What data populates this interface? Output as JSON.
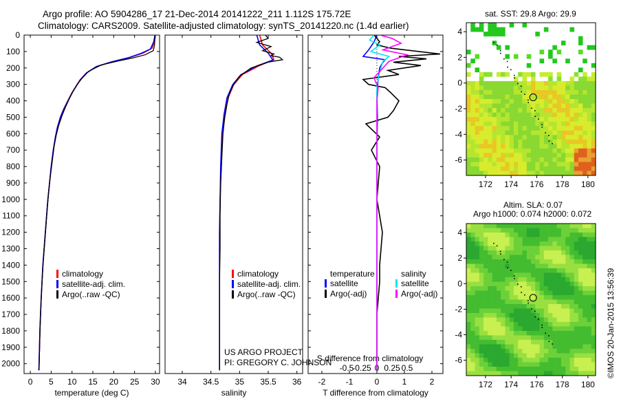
{
  "title_line1": "Argo profile: AO 5904286_17 21-Dec-2014 20141222_211 1.112S 175.72E",
  "title_line2": "Climatology: CARS2009. Satellite-adjusted climatology: synTS_20141220.nc (1.4d earlier)",
  "sst_title": "sat. SST: 29.8 Argo: 29.9",
  "sla_title1": "Altim. SLA: 0.07",
  "sla_title2": "Argo h1000: 0.074 h2000: 0.072",
  "side_stamp": "©IMOS 20-Jan-2015 13:56:39",
  "project_line1": "US ARGO PROJECT",
  "project_line2": "PI: GREGORY C. JOHNSON",
  "colors": {
    "climatology": "#ff0000",
    "satellite": "#0000ff",
    "argo": "#000000",
    "sat_diff": "#00e5ee",
    "argo_diff": "#ff00ff"
  },
  "chart_data": [
    {
      "type": "line",
      "xlabel": "temperature (deg C)",
      "ylabel": "",
      "xlim": [
        -1.5,
        31
      ],
      "ylim": [
        2060,
        0
      ],
      "xticks": [
        0,
        5,
        10,
        15,
        20,
        25,
        30
      ],
      "yticks": [
        0,
        100,
        200,
        300,
        400,
        500,
        600,
        700,
        800,
        900,
        1000,
        1100,
        1200,
        1300,
        1400,
        1500,
        1600,
        1700,
        1800,
        1900,
        2000
      ],
      "legend": [
        "climatology",
        "satellite-adj. clim.",
        "Argo(..raw -QC)"
      ],
      "series": [
        {
          "name": "climatology",
          "color": "#ff0000",
          "points": [
            [
              30,
              0
            ],
            [
              29.8,
              40
            ],
            [
              29.2,
              80
            ],
            [
              27,
              110
            ],
            [
              24,
              135
            ],
            [
              20,
              160
            ],
            [
              16,
              190
            ],
            [
              13.5,
              230
            ],
            [
              12,
              270
            ],
            [
              11,
              310
            ],
            [
              10,
              350
            ],
            [
              9,
              400
            ],
            [
              8,
              450
            ],
            [
              7.2,
              500
            ],
            [
              6.5,
              560
            ],
            [
              6,
              620
            ],
            [
              5.5,
              700
            ],
            [
              5,
              800
            ],
            [
              4.6,
              900
            ],
            [
              4.2,
              1000
            ],
            [
              3.9,
              1100
            ],
            [
              3.6,
              1200
            ],
            [
              3.3,
              1300
            ],
            [
              3,
              1400
            ],
            [
              2.8,
              1500
            ],
            [
              2.6,
              1600
            ],
            [
              2.45,
              1700
            ],
            [
              2.3,
              1800
            ],
            [
              2.2,
              1900
            ],
            [
              2.1,
              2000
            ],
            [
              2.05,
              2040
            ]
          ]
        },
        {
          "name": "satellite-adj. clim.",
          "color": "#0000ff",
          "points": [
            [
              29.9,
              0
            ],
            [
              29.6,
              40
            ],
            [
              28.8,
              85
            ],
            [
              26.5,
              112
            ],
            [
              23.5,
              138
            ],
            [
              19.5,
              163
            ],
            [
              15.8,
              192
            ],
            [
              13.4,
              232
            ],
            [
              12,
              272
            ],
            [
              11,
              312
            ],
            [
              10,
              352
            ],
            [
              9,
              402
            ],
            [
              8,
              452
            ],
            [
              7.2,
              502
            ],
            [
              6.5,
              562
            ],
            [
              6,
              622
            ],
            [
              5.5,
              702
            ],
            [
              5,
              802
            ],
            [
              4.6,
              902
            ],
            [
              4.2,
              1002
            ],
            [
              3.9,
              1102
            ],
            [
              3.6,
              1202
            ],
            [
              3.3,
              1302
            ],
            [
              3,
              1402
            ],
            [
              2.8,
              1502
            ],
            [
              2.6,
              1602
            ],
            [
              2.45,
              1702
            ],
            [
              2.3,
              1802
            ],
            [
              2.2,
              1902
            ],
            [
              2.1,
              2002
            ],
            [
              2.05,
              2040
            ]
          ]
        },
        {
          "name": "Argo(..raw -QC)",
          "color": "#000000",
          "points": [
            [
              29.9,
              0
            ],
            [
              29.8,
              60
            ],
            [
              29.5,
              95
            ],
            [
              27.5,
              120
            ],
            [
              24.5,
              140
            ],
            [
              21,
              158
            ],
            [
              17,
              182
            ],
            [
              14,
              220
            ],
            [
              12.5,
              260
            ],
            [
              11.2,
              300
            ],
            [
              10.3,
              340
            ],
            [
              9.3,
              390
            ],
            [
              8.4,
              440
            ],
            [
              7.6,
              490
            ],
            [
              6.8,
              550
            ],
            [
              6.2,
              610
            ],
            [
              5.7,
              680
            ],
            [
              5.2,
              780
            ],
            [
              4.7,
              880
            ],
            [
              4.3,
              980
            ],
            [
              4,
              1080
            ],
            [
              3.7,
              1180
            ],
            [
              3.4,
              1280
            ],
            [
              3.1,
              1380
            ],
            [
              2.85,
              1480
            ],
            [
              2.65,
              1580
            ],
            [
              2.5,
              1680
            ],
            [
              2.35,
              1780
            ],
            [
              2.25,
              1880
            ],
            [
              2.15,
              1980
            ],
            [
              2.1,
              2040
            ]
          ]
        }
      ]
    },
    {
      "type": "line",
      "xlabel": "salinity",
      "xlim": [
        33.7,
        36.1
      ],
      "ylim": [
        2060,
        0
      ],
      "xticks": [
        34,
        34.5,
        35,
        35.5,
        36
      ],
      "xticklabels": [
        "34",
        "34.5",
        "35",
        "35.5",
        "36"
      ],
      "legend": [
        "climatology",
        "satellite-adj. clim.",
        "Argo(..raw -QC)"
      ],
      "series": [
        {
          "name": "climatology",
          "color": "#ff0000",
          "points": [
            [
              35.35,
              0
            ],
            [
              35.4,
              60
            ],
            [
              35.55,
              110
            ],
            [
              35.6,
              150
            ],
            [
              35.35,
              185
            ],
            [
              35.05,
              240
            ],
            [
              34.9,
              300
            ],
            [
              34.8,
              380
            ],
            [
              34.75,
              480
            ],
            [
              34.7,
              600
            ],
            [
              34.68,
              800
            ],
            [
              34.66,
              1000
            ],
            [
              34.65,
              1200
            ],
            [
              34.65,
              1400
            ],
            [
              34.65,
              1600
            ],
            [
              34.65,
              1800
            ],
            [
              34.65,
              2000
            ],
            [
              34.65,
              2040
            ]
          ]
        },
        {
          "name": "satellite-adj. clim.",
          "color": "#0000ff",
          "points": [
            [
              35.3,
              0
            ],
            [
              35.35,
              60
            ],
            [
              35.5,
              110
            ],
            [
              35.58,
              152
            ],
            [
              35.3,
              188
            ],
            [
              35.02,
              242
            ],
            [
              34.88,
              302
            ],
            [
              34.78,
              382
            ],
            [
              34.73,
              482
            ],
            [
              34.69,
              602
            ],
            [
              34.67,
              802
            ],
            [
              34.66,
              1002
            ],
            [
              34.65,
              1202
            ],
            [
              34.65,
              1402
            ],
            [
              34.65,
              1602
            ],
            [
              34.65,
              1802
            ],
            [
              34.65,
              2002
            ],
            [
              34.65,
              2040
            ]
          ]
        },
        {
          "name": "Argo(..raw -QC)",
          "color": "#000000",
          "points": [
            [
              35.45,
              0
            ],
            [
              35.5,
              20
            ],
            [
              35.3,
              45
            ],
            [
              35.55,
              70
            ],
            [
              35.4,
              95
            ],
            [
              35.6,
              115
            ],
            [
              35.55,
              125
            ],
            [
              35.7,
              135
            ],
            [
              35.75,
              150
            ],
            [
              35.5,
              165
            ],
            [
              35.2,
              200
            ],
            [
              35.0,
              250
            ],
            [
              34.88,
              310
            ],
            [
              34.82,
              360
            ],
            [
              34.78,
              420
            ],
            [
              34.74,
              500
            ],
            [
              34.71,
              600
            ],
            [
              34.69,
              750
            ],
            [
              34.67,
              900
            ],
            [
              34.66,
              1100
            ],
            [
              34.66,
              1300
            ],
            [
              34.65,
              1500
            ],
            [
              34.65,
              1700
            ],
            [
              34.65,
              1900
            ],
            [
              34.65,
              2040
            ]
          ]
        }
      ]
    },
    {
      "type": "line",
      "xlabel": "T difference from climatology",
      "xlabel_top": "S difference from climatology",
      "xlim": [
        -2.5,
        2.4
      ],
      "ylim": [
        2060,
        0
      ],
      "xticks": [
        -2,
        -1,
        0,
        1,
        2
      ],
      "xticks_s": [
        -0.5,
        -0.25,
        0,
        0.25,
        0.5
      ],
      "xticklabels_s": [
        "-0.5",
        "-0.25",
        "0",
        "0.25",
        "0.5"
      ],
      "legend_title_t": "temperature",
      "legend_title_s": "salinity",
      "legend_t": [
        "satellite",
        "Argo(-adj)"
      ],
      "legend_s": [
        "satellite",
        "Argo(-adj)"
      ],
      "series": [
        {
          "name": "T satellite",
          "color": "#0000ff",
          "points": [
            [
              0,
              0
            ],
            [
              -0.1,
              40
            ],
            [
              -0.3,
              90
            ],
            [
              -0.4,
              110
            ],
            [
              -0.5,
              130
            ],
            [
              0.3,
              150
            ],
            [
              0.2,
              170
            ],
            [
              0.1,
              200
            ],
            [
              0.05,
              260
            ],
            [
              0,
              350
            ],
            [
              0.02,
              500
            ],
            [
              0,
              700
            ],
            [
              0,
              1000
            ],
            [
              0,
              1500
            ],
            [
              0,
              2040
            ]
          ]
        },
        {
          "name": "T Argo(-adj)",
          "color": "#000000",
          "points": [
            [
              -0.1,
              0
            ],
            [
              0.1,
              40
            ],
            [
              0,
              60
            ],
            [
              0.5,
              80
            ],
            [
              2.3,
              115
            ],
            [
              0.8,
              130
            ],
            [
              1.8,
              145
            ],
            [
              0.6,
              165
            ],
            [
              1.6,
              185
            ],
            [
              0.4,
              215
            ],
            [
              0.8,
              240
            ],
            [
              -0.5,
              270
            ],
            [
              -0.3,
              300
            ],
            [
              0.3,
              320
            ],
            [
              0.5,
              350
            ],
            [
              0.8,
              400
            ],
            [
              0.6,
              460
            ],
            [
              0.4,
              500
            ],
            [
              -0.4,
              540
            ],
            [
              0.1,
              620
            ],
            [
              -0.2,
              700
            ],
            [
              0.1,
              800
            ],
            [
              0,
              1000
            ],
            [
              0.2,
              1200
            ],
            [
              0.1,
              1400
            ],
            [
              0.1,
              1500
            ],
            [
              0,
              1700
            ],
            [
              0,
              2040
            ]
          ]
        },
        {
          "name": "S satellite",
          "color": "#00e5ee",
          "points": [
            [
              -0.05,
              0
            ],
            [
              -0.12,
              30
            ],
            [
              0.05,
              60
            ],
            [
              -0.1,
              100
            ],
            [
              0.2,
              130
            ],
            [
              0.1,
              160
            ],
            [
              0.05,
              220
            ],
            [
              0,
              300
            ],
            [
              0,
              500
            ],
            [
              0,
              1000
            ],
            [
              0,
              1500
            ],
            [
              0,
              2040
            ]
          ]
        },
        {
          "name": "S Argo(-adj)",
          "color": "#ff00ff",
          "points": [
            [
              0.05,
              0
            ],
            [
              0.25,
              20
            ],
            [
              0.4,
              50
            ],
            [
              0.1,
              90
            ],
            [
              0.5,
              120
            ],
            [
              0.2,
              160
            ],
            [
              0.1,
              200
            ],
            [
              -0.05,
              260
            ],
            [
              0.02,
              320
            ],
            [
              0,
              400
            ],
            [
              0,
              600
            ],
            [
              0,
              2040
            ]
          ]
        }
      ]
    },
    {
      "type": "heatmap",
      "title": "sat. SST: 29.8 Argo: 29.9",
      "xlim": [
        170.5,
        180.6
      ],
      "ylim": [
        -7.2,
        4.7
      ],
      "xticks": [
        172,
        174,
        176,
        178,
        180
      ],
      "yticks": [
        -6,
        -4,
        -2,
        0,
        2,
        4
      ],
      "argo_position": [
        175.72,
        -1.112
      ]
    },
    {
      "type": "heatmap",
      "title": "Altim. SLA: 0.07",
      "xlim": [
        170.5,
        180.6
      ],
      "ylim": [
        -7.2,
        4.7
      ],
      "xticks": [
        172,
        174,
        176,
        178,
        180
      ],
      "yticks": [
        -6,
        -4,
        -2,
        0,
        2,
        4
      ],
      "argo_position": [
        175.72,
        -1.112
      ]
    }
  ]
}
